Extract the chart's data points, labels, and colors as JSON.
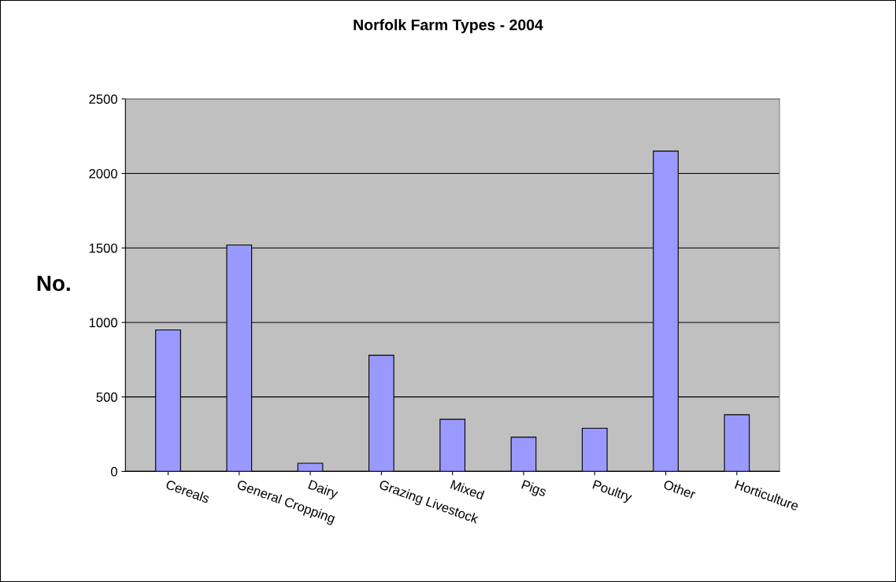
{
  "chart_data": {
    "type": "bar",
    "title": "Norfolk Farm Types - 2004",
    "ylabel": "No.",
    "categories": [
      "Cereals",
      "General Cropping",
      "Dairy",
      "Grazing Livestock",
      "Mixed",
      "Pigs",
      "Poultry",
      "Other",
      "Horticulture"
    ],
    "values": [
      950,
      1520,
      55,
      780,
      350,
      230,
      290,
      2150,
      380
    ],
    "color": "#9999ff",
    "ylim": [
      0,
      2500
    ],
    "yticks": [
      0,
      500,
      1000,
      1500,
      2000,
      2500
    ],
    "grid": "y"
  }
}
